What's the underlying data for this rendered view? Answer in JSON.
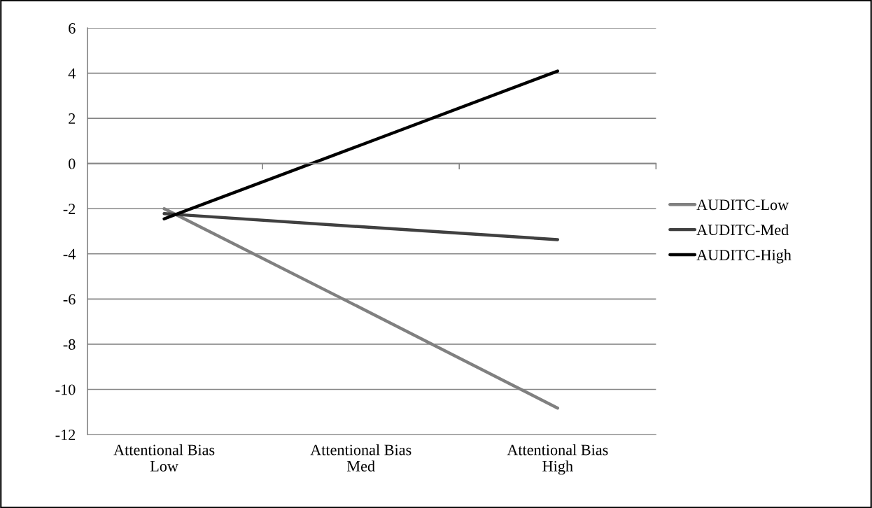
{
  "chart_data": {
    "type": "line",
    "categories": [
      "Attentional Bias\nLow",
      "Attentional Bias\nMed",
      "Attentional Bias\nHigh"
    ],
    "series": [
      {
        "name": "AUDITC-Low",
        "color": "#808080",
        "values": [
          -2.0,
          -6.4,
          -10.83
        ]
      },
      {
        "name": "AUDITC-Med",
        "color": "#404040",
        "values": [
          -2.22,
          -2.8,
          -3.37
        ]
      },
      {
        "name": "AUDITC-High",
        "color": "#000000",
        "values": [
          -2.45,
          0.82,
          4.09
        ]
      }
    ],
    "ylim": [
      -12,
      6
    ],
    "yticks": [
      -12,
      -10,
      -8,
      -6,
      -4,
      -2,
      0,
      2,
      4,
      6
    ],
    "grid": "y",
    "legend": "right",
    "marker": "none",
    "line_style": "solid"
  }
}
